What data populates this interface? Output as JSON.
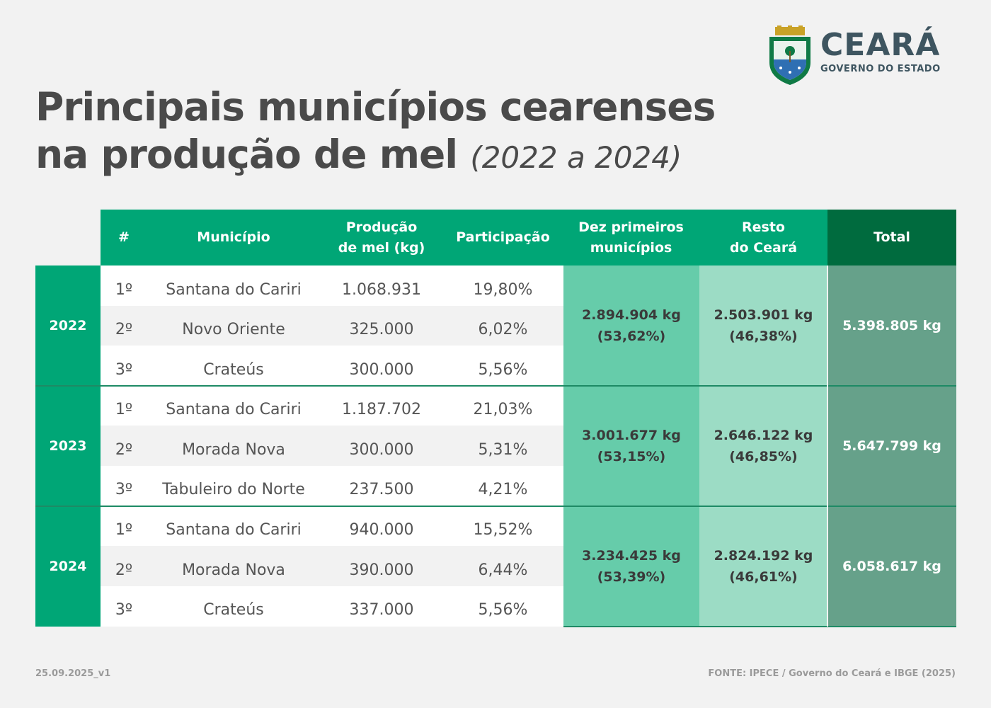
{
  "logo": {
    "name": "CEARÁ",
    "tagline": "GOVERNO DO ESTADO"
  },
  "title": {
    "line1": "Principais municípios cearenses",
    "line2": "na produção de mel",
    "period": "(2022 a 2024)"
  },
  "headers": {
    "rank": "#",
    "municipio": "Município",
    "producao": [
      "Produção",
      "de mel (kg)"
    ],
    "participacao": "Participação",
    "dez": [
      "Dez primeiros",
      "municípios"
    ],
    "resto": [
      "Resto",
      "do Ceará"
    ],
    "total": "Total"
  },
  "years": [
    {
      "year": "2022",
      "rows": [
        {
          "rank": "1º",
          "municipio": "Santana do Cariri",
          "producao": "1.068.931",
          "participacao": "19,80%"
        },
        {
          "rank": "2º",
          "municipio": "Novo Oriente",
          "producao": "325.000",
          "participacao": "6,02%"
        },
        {
          "rank": "3º",
          "municipio": "Crateús",
          "producao": "300.000",
          "participacao": "5,56%"
        }
      ],
      "dez": {
        "kg": "2.894.904 kg",
        "pct": "(53,62%)"
      },
      "resto": {
        "kg": "2.503.901 kg",
        "pct": "(46,38%)"
      },
      "total": "5.398.805 kg"
    },
    {
      "year": "2023",
      "rows": [
        {
          "rank": "1º",
          "municipio": "Santana do Cariri",
          "producao": "1.187.702",
          "participacao": "21,03%"
        },
        {
          "rank": "2º",
          "municipio": "Morada Nova",
          "producao": "300.000",
          "participacao": "5,31%"
        },
        {
          "rank": "3º",
          "municipio": "Tabuleiro do Norte",
          "producao": "237.500",
          "participacao": "4,21%"
        }
      ],
      "dez": {
        "kg": "3.001.677 kg",
        "pct": "(53,15%)"
      },
      "resto": {
        "kg": "2.646.122 kg",
        "pct": "(46,85%)"
      },
      "total": "5.647.799 kg"
    },
    {
      "year": "2024",
      "rows": [
        {
          "rank": "1º",
          "municipio": "Santana do Cariri",
          "producao": "940.000",
          "participacao": "15,52%"
        },
        {
          "rank": "2º",
          "municipio": "Morada Nova",
          "producao": "390.000",
          "participacao": "6,44%"
        },
        {
          "rank": "3º",
          "municipio": "Crateús",
          "producao": "337.000",
          "participacao": "5,56%"
        }
      ],
      "dez": {
        "kg": "3.234.425 kg",
        "pct": "(53,39%)"
      },
      "resto": {
        "kg": "2.824.192 kg",
        "pct": "(46,61%)"
      },
      "total": "6.058.617 kg"
    }
  ],
  "footer": {
    "version": "25.09.2025_v1",
    "source": "FONTE: IPECE / Governo do Ceará e IBGE (2025)"
  },
  "colors": {
    "green": "#00a676",
    "dark_green": "#006b3e",
    "dez": "#66ccaa",
    "resto": "#9cdcc5",
    "total": "#66a18a",
    "text": "#4a4a4a"
  }
}
